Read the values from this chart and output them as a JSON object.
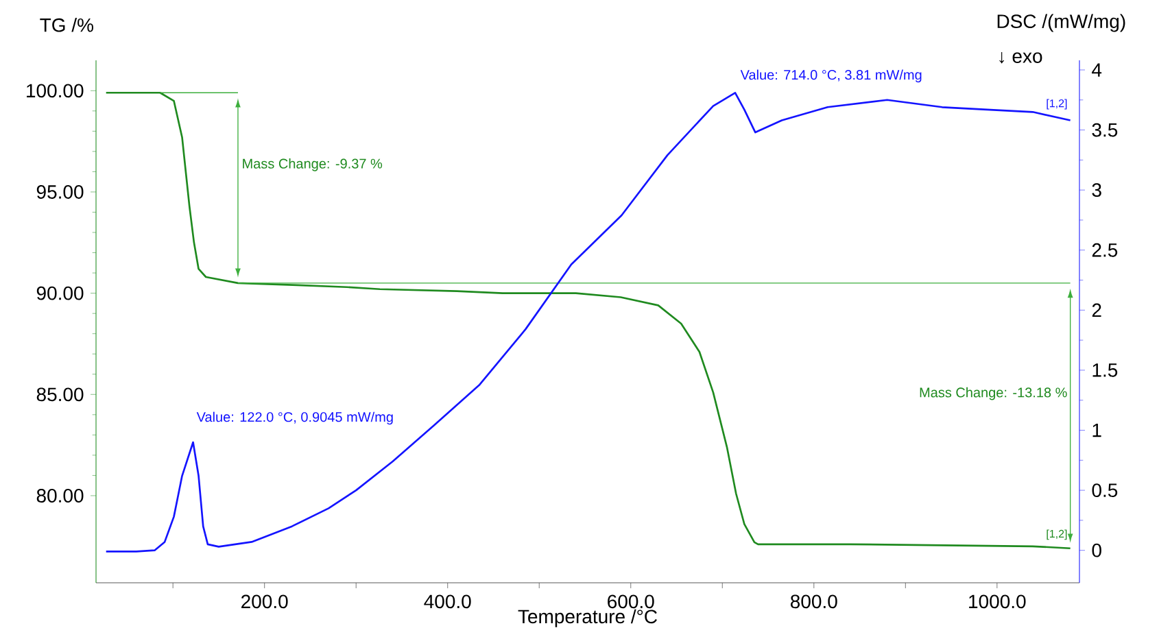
{
  "chart_data": {
    "type": "line",
    "xlabel": "Temperature /°C",
    "ylabel": "TG /%",
    "y2label": "DSC /(mW/mg)",
    "xlim": [
      16,
      1090
    ],
    "xticks": [
      {
        "value": 100,
        "label": null
      },
      {
        "value": 200,
        "label": "200.0"
      },
      {
        "value": 300,
        "label": null
      },
      {
        "value": 400,
        "label": "400.0"
      },
      {
        "value": 500,
        "label": null
      },
      {
        "value": 600,
        "label": "600.0"
      },
      {
        "value": 700,
        "label": null
      },
      {
        "value": 800,
        "label": "800.0"
      },
      {
        "value": 900,
        "label": null
      },
      {
        "value": 1000,
        "label": "1000.0"
      }
    ],
    "ylim": [
      75.7,
      101.5
    ],
    "yticks": [
      {
        "value": 80,
        "label": "80.00"
      },
      {
        "value": 85,
        "label": "85.00"
      },
      {
        "value": 90,
        "label": "90.00"
      },
      {
        "value": 95,
        "label": "95.00"
      },
      {
        "value": 100,
        "label": "100.00"
      }
    ],
    "y2lim": [
      -0.27,
      4.08
    ],
    "y2ticks": [
      0,
      0.5,
      1,
      1.5,
      2,
      2.5,
      3,
      3.5,
      4
    ],
    "series": [
      {
        "color": "#1f8a1f",
        "axis": "y",
        "x": [
          27,
          60,
          86,
          101,
          110,
          118,
          123,
          128,
          136,
          171,
          236,
          290,
          326,
          410,
          460,
          540,
          589,
          630,
          655,
          675,
          690,
          705,
          715,
          724,
          735,
          739,
          840,
          1039,
          1080
        ],
        "values": [
          99.9,
          99.9,
          99.9,
          99.5,
          97.7,
          94.3,
          92.5,
          91.2,
          90.8,
          90.5,
          90.4,
          90.3,
          90.2,
          90.1,
          90.0,
          90.0,
          89.8,
          89.4,
          88.5,
          87.1,
          85.1,
          82.4,
          80.1,
          78.6,
          77.7,
          77.6,
          77.6,
          77.5,
          77.4
        ]
      },
      {
        "color": "#1414ff",
        "axis": "y2",
        "x": [
          27,
          60,
          80,
          91,
          101,
          110,
          122,
          128,
          133,
          138,
          150,
          186,
          230,
          270,
          300,
          340,
          385,
          435,
          485,
          535,
          590,
          640,
          690,
          714,
          724,
          736,
          765,
          815,
          880,
          940,
          989,
          1039,
          1080
        ],
        "values": [
          -0.01,
          -0.01,
          0.0,
          0.07,
          0.28,
          0.62,
          0.9,
          0.62,
          0.2,
          0.05,
          0.03,
          0.07,
          0.2,
          0.35,
          0.5,
          0.74,
          1.04,
          1.38,
          1.84,
          2.38,
          2.79,
          3.29,
          3.7,
          3.81,
          3.67,
          3.48,
          3.58,
          3.69,
          3.75,
          3.69,
          3.67,
          3.65,
          3.58
        ]
      },
      {
        "color": "#3cae3c",
        "axis": "y",
        "x": [
          86,
          171
        ],
        "values": [
          99.9,
          99.9
        ]
      },
      {
        "color": "#3cae3c",
        "axis": "y",
        "x": [
          171,
          1080
        ],
        "values": [
          90.5,
          90.5
        ]
      }
    ],
    "annotations": [
      "Mass Change: -9.37 %",
      "Value: 122.0 °C, 0.9045 mW/mg",
      "Value: 714.0 °C, 3.81 mW/mg",
      "Mass Change: -13.18 %",
      "[1,2]",
      "[1,2]",
      "↓ exo"
    ]
  }
}
